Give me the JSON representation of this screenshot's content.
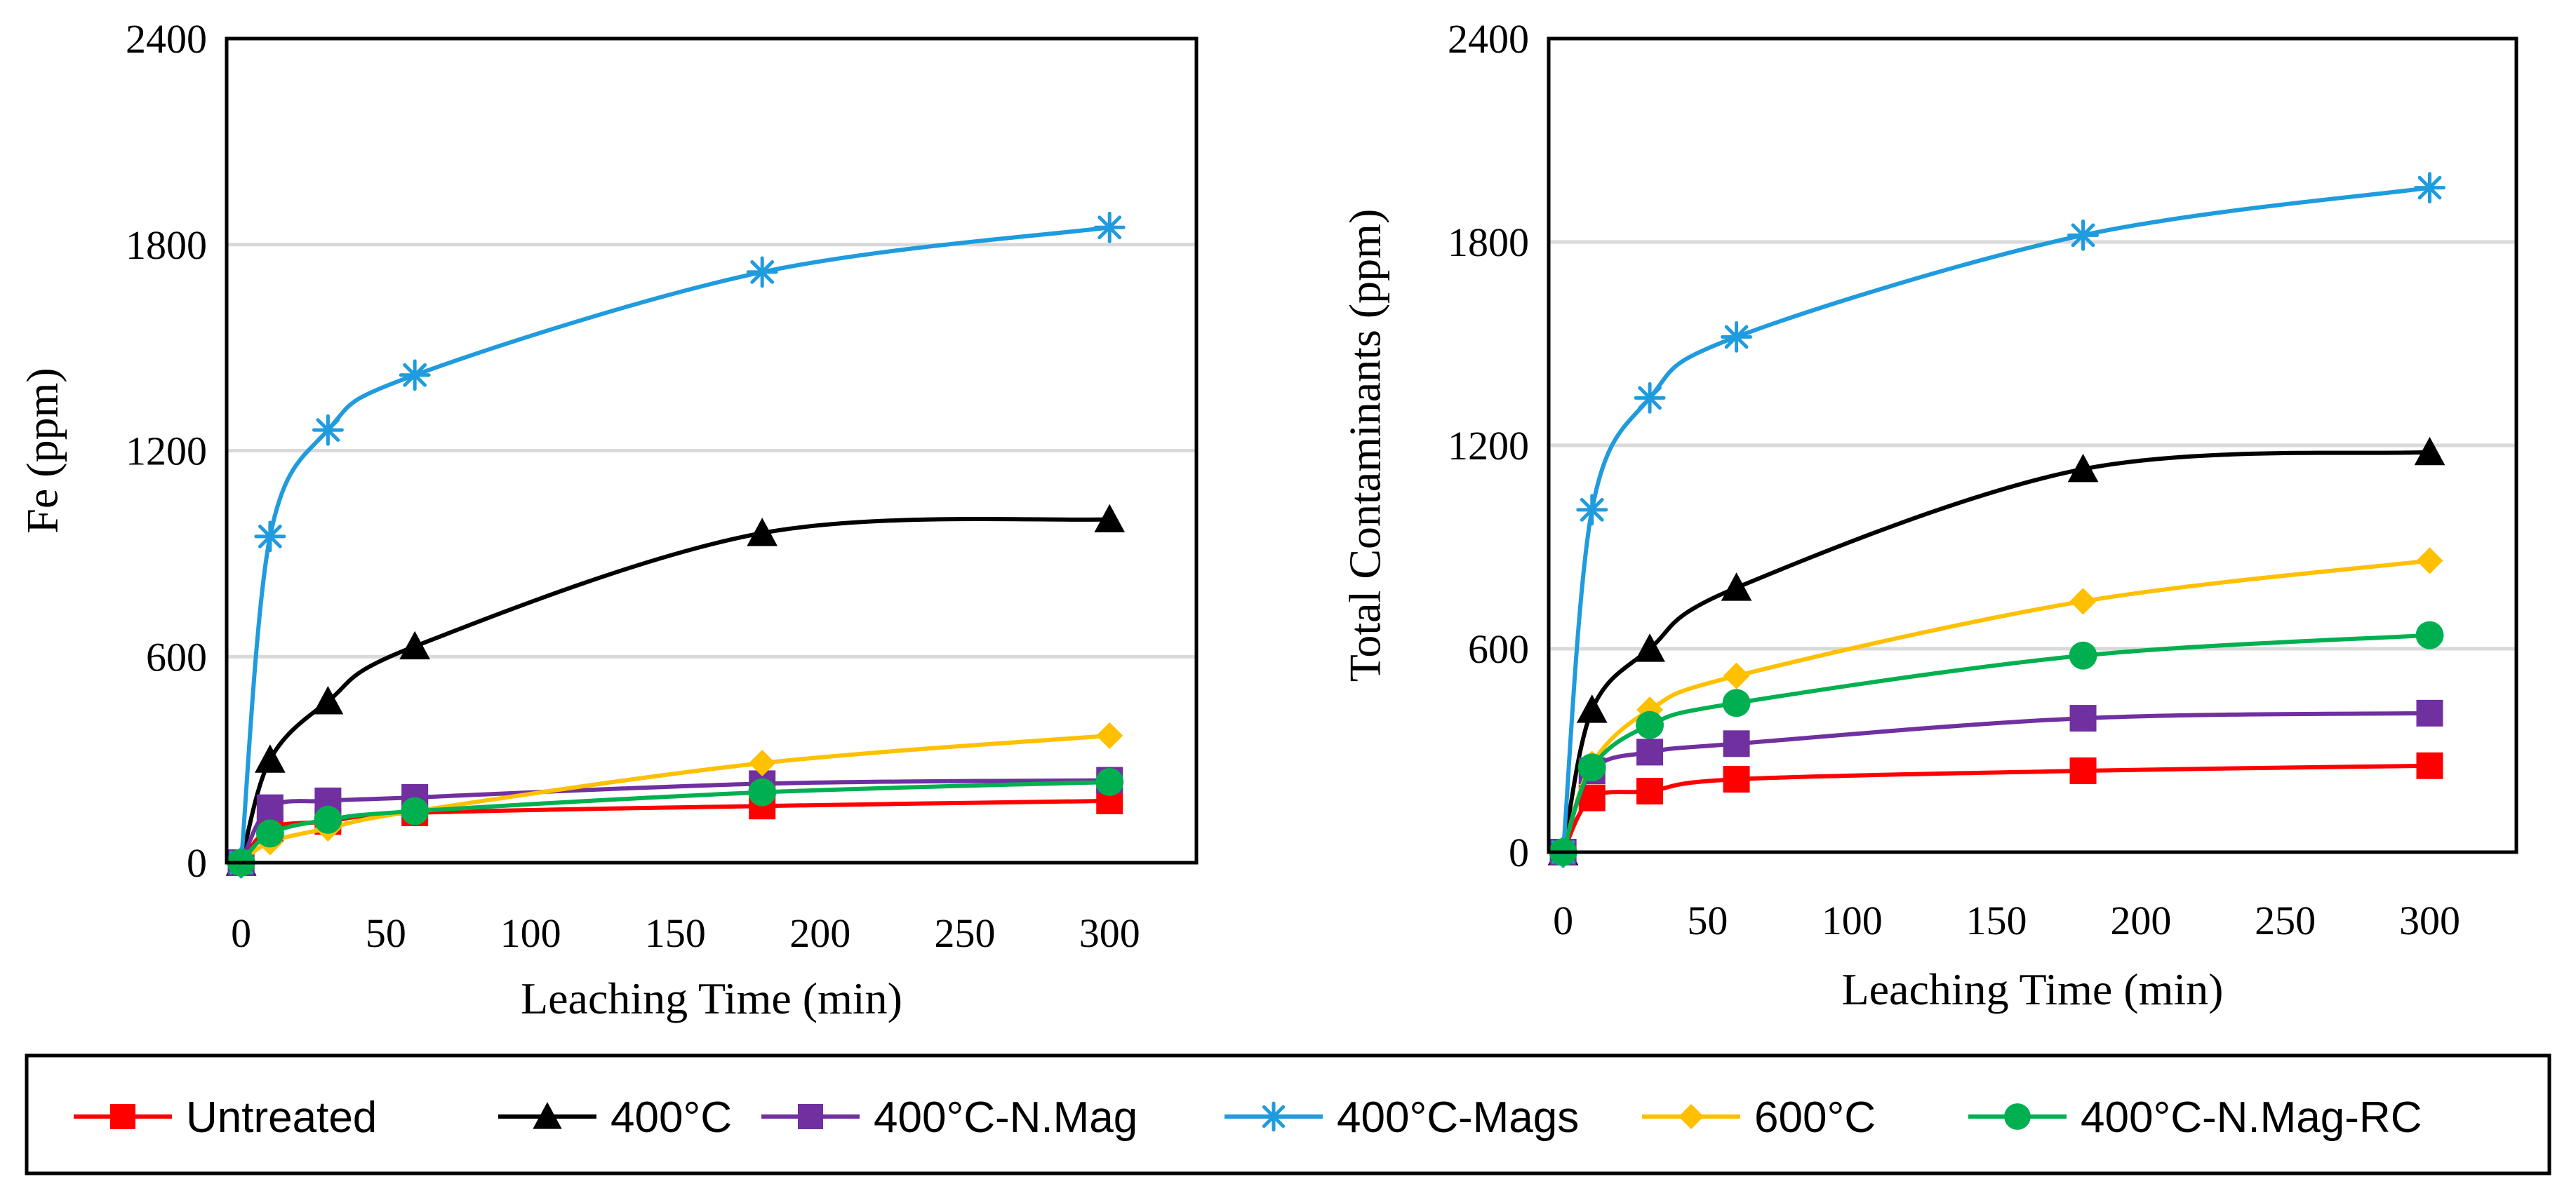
{
  "legend": [
    {
      "key": "untreated",
      "label": "Untreated",
      "color": "#FF0000",
      "marker": "square"
    },
    {
      "key": "c400",
      "label": "400°C",
      "color": "#000000",
      "marker": "triangle"
    },
    {
      "key": "nmag",
      "label": "400°C-N.Mag",
      "color": "#7030A0",
      "marker": "square"
    },
    {
      "key": "mags",
      "label": "400°C-Mags",
      "color": "#1F9BDE",
      "marker": "star"
    },
    {
      "key": "c600",
      "label": "600°C",
      "color": "#FFC000",
      "marker": "diamond"
    },
    {
      "key": "rc",
      "label": "400°C-N.Mag-RC",
      "color": "#00B050",
      "marker": "circle"
    }
  ],
  "chart_data": [
    {
      "type": "line",
      "panel": "left",
      "xlabel": "Leaching Time (min)",
      "ylabel": "Fe (ppm)",
      "xlim": [
        -5,
        330
      ],
      "ylim": [
        0,
        2400
      ],
      "xticks": [
        0,
        50,
        100,
        150,
        200,
        250,
        300
      ],
      "yticks": [
        0,
        600,
        1200,
        1800,
        2400
      ],
      "grid": "horizontal",
      "x": [
        0,
        10,
        30,
        60,
        180,
        300
      ],
      "series": [
        {
          "name": "Untreated",
          "key": "untreated",
          "values": [
            0,
            100,
            120,
            145,
            165,
            180
          ]
        },
        {
          "name": "400°C",
          "key": "c400",
          "values": [
            0,
            300,
            470,
            630,
            960,
            1000
          ]
        },
        {
          "name": "400°C-N.Mag",
          "key": "nmag",
          "values": [
            0,
            160,
            180,
            190,
            230,
            240
          ]
        },
        {
          "name": "400°C-Mags",
          "key": "mags",
          "values": [
            0,
            950,
            1260,
            1420,
            1720,
            1850
          ]
        },
        {
          "name": "600°C",
          "key": "c600",
          "values": [
            0,
            60,
            100,
            150,
            290,
            370
          ]
        },
        {
          "name": "400°C-N.Mag-RC",
          "key": "rc",
          "values": [
            0,
            85,
            125,
            150,
            205,
            235
          ]
        }
      ]
    },
    {
      "type": "line",
      "panel": "right",
      "xlabel": "Leaching Time (min)",
      "ylabel": "Total Contaminants (ppm)",
      "xlim": [
        -5,
        330
      ],
      "ylim": [
        0,
        2400
      ],
      "xticks": [
        0,
        50,
        100,
        150,
        200,
        250,
        300
      ],
      "yticks": [
        0,
        600,
        1200,
        1800,
        2400
      ],
      "grid": "horizontal",
      "x": [
        0,
        10,
        30,
        60,
        180,
        300
      ],
      "series": [
        {
          "name": "Untreated",
          "key": "untreated",
          "values": [
            0,
            160,
            180,
            215,
            240,
            255
          ]
        },
        {
          "name": "400°C",
          "key": "c400",
          "values": [
            0,
            420,
            600,
            780,
            1130,
            1180
          ]
        },
        {
          "name": "400°C-N.Mag",
          "key": "nmag",
          "values": [
            0,
            240,
            295,
            320,
            395,
            410
          ]
        },
        {
          "name": "400°C-Mags",
          "key": "mags",
          "values": [
            0,
            1010,
            1340,
            1520,
            1820,
            1960
          ]
        },
        {
          "name": "600°C",
          "key": "c600",
          "values": [
            0,
            260,
            420,
            520,
            740,
            860
          ]
        },
        {
          "name": "400°C-N.Mag-RC",
          "key": "rc",
          "values": [
            0,
            250,
            375,
            440,
            580,
            640
          ]
        }
      ]
    }
  ]
}
